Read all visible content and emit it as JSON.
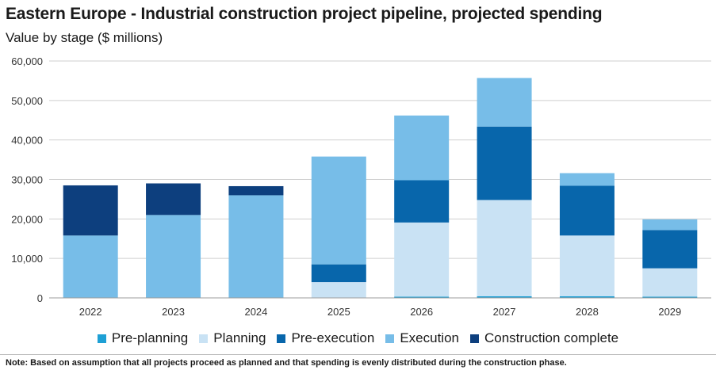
{
  "title": "Eastern Europe - Industrial construction project pipeline, projected spending",
  "subtitle": "Value by stage ($ millions)",
  "note": "Note: Based on assumption that all projects proceed as planned and that spending is evenly distributed during the construction phase.",
  "chart_data": {
    "type": "bar",
    "stacked": true,
    "categories": [
      "2022",
      "2023",
      "2024",
      "2025",
      "2026",
      "2027",
      "2028",
      "2029"
    ],
    "ylim": [
      0,
      60000
    ],
    "yticks": [
      0,
      10000,
      20000,
      30000,
      40000,
      50000,
      60000
    ],
    "ytick_labels": [
      "0",
      "10,000",
      "20,000",
      "30,000",
      "40,000",
      "50,000",
      "60,000"
    ],
    "grid": true,
    "legend_position": "bottom",
    "series": [
      {
        "name": "Pre-planning",
        "color": "#1ea0d5",
        "values": [
          0,
          0,
          0,
          0,
          300,
          400,
          400,
          300
        ]
      },
      {
        "name": "Planning",
        "color": "#c9e2f4",
        "values": [
          0,
          0,
          0,
          4000,
          18800,
          24400,
          15400,
          7200
        ]
      },
      {
        "name": "Pre-execution",
        "color": "#0866ab",
        "values": [
          0,
          0,
          0,
          4500,
          10700,
          18600,
          12600,
          9700
        ]
      },
      {
        "name": "Execution",
        "color": "#77bde8",
        "values": [
          15800,
          21000,
          26000,
          27300,
          16400,
          12300,
          3200,
          2700
        ]
      },
      {
        "name": "Construction complete",
        "color": "#0d3f7e",
        "values": [
          12700,
          8000,
          2300,
          0,
          0,
          0,
          0,
          0
        ]
      }
    ]
  }
}
